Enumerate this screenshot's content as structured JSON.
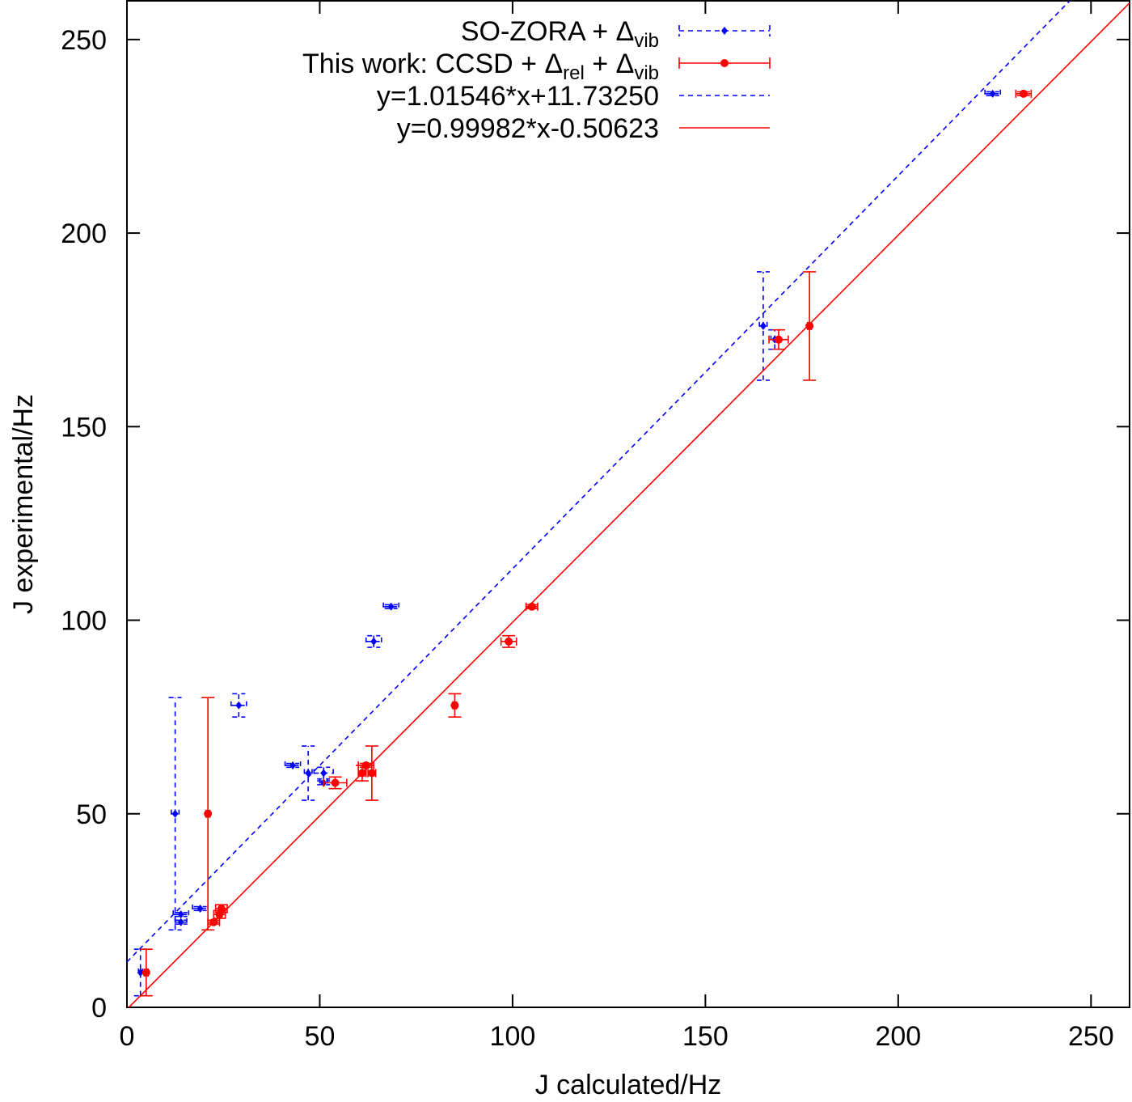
{
  "chart_data": {
    "type": "scatter",
    "x_label": "J calculated/Hz",
    "y_label": "J experimental/Hz",
    "xlim": [
      0,
      260
    ],
    "ylim": [
      0,
      260
    ],
    "xticks": [
      0,
      50,
      100,
      150,
      200,
      250
    ],
    "yticks": [
      0,
      50,
      100,
      150,
      200,
      250
    ],
    "grid": false,
    "legend": "top-left",
    "series": [
      {
        "name": [
          {
            "text": "SO-ZORA + Δ",
            "sub": false
          },
          {
            "text": "vib",
            "sub": true
          }
        ],
        "color": "#0000ff",
        "dashed": true,
        "marker": "diamond",
        "x": [
          3.5,
          12.5,
          14,
          14,
          19,
          29,
          43,
          47,
          51,
          51,
          64,
          68.5,
          165,
          168,
          224.5
        ],
        "y": [
          9,
          50,
          24,
          22,
          25.5,
          78,
          62.5,
          60.5,
          60.5,
          58,
          94.5,
          103.5,
          176,
          172.5,
          236
        ],
        "xerr": [
          0.5,
          1,
          2,
          1.5,
          2,
          2,
          2,
          1,
          2.5,
          1,
          2,
          2,
          1,
          1,
          2
        ],
        "yerr": [
          6,
          30,
          0.5,
          0.5,
          0.5,
          3,
          0.5,
          7,
          1.5,
          0.5,
          1.5,
          0.5,
          14,
          2.5,
          0.5
        ]
      },
      {
        "name": [
          {
            "text": "This work: CCSD + Δ",
            "sub": false
          },
          {
            "text": "rel",
            "sub": true
          },
          {
            "text": " + Δ",
            "sub": false
          },
          {
            "text": "vib",
            "sub": true
          }
        ],
        "color": "#ff0000",
        "dashed": false,
        "marker": "circle",
        "x": [
          5,
          21,
          22.5,
          24.5,
          24,
          54,
          61,
          62,
          63.5,
          85,
          99,
          105,
          169,
          177,
          232.5
        ],
        "y": [
          9,
          50,
          22,
          25.5,
          24,
          58,
          60.5,
          62.5,
          60.5,
          78,
          94.5,
          103.5,
          172.5,
          176,
          236
        ],
        "xerr": [
          0.5,
          0.5,
          1.5,
          1.5,
          1.5,
          3,
          1,
          2,
          1,
          0.5,
          2,
          1.5,
          2.5,
          0.5,
          2
        ],
        "yerr": [
          6,
          30,
          0.5,
          1,
          1,
          1.5,
          2,
          0.5,
          7,
          3,
          1.5,
          0.5,
          2.5,
          14,
          0.5
        ]
      },
      {
        "name": [
          {
            "text": "y=1.01546*x+11.73250",
            "sub": false
          }
        ],
        "color": "#0000ff",
        "dashed": true,
        "kind": "fit",
        "slope": 1.01546,
        "intercept": 11.7325
      },
      {
        "name": [
          {
            "text": "y=0.99982*x-0.50623",
            "sub": false
          }
        ],
        "color": "#ff0000",
        "dashed": false,
        "kind": "fit",
        "slope": 0.99982,
        "intercept": -0.50623
      }
    ]
  }
}
